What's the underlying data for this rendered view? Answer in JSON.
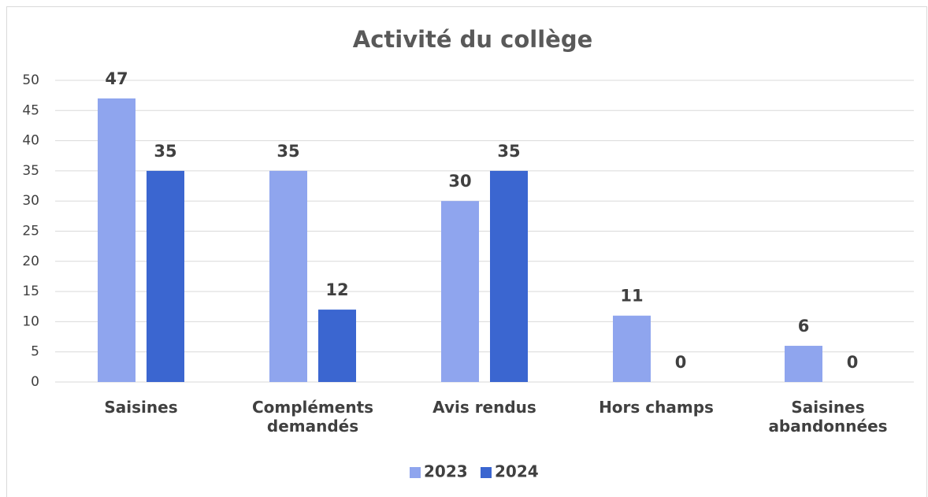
{
  "chart_data": {
    "type": "bar",
    "title": "Activité du collège",
    "categories": [
      "Saisines",
      "Compléments demandés",
      "Avis rendus",
      "Hors champs",
      "Saisines abandonnées"
    ],
    "series": [
      {
        "name": "2023",
        "color": "#8fa5ee",
        "values": [
          47,
          35,
          30,
          11,
          6
        ]
      },
      {
        "name": "2024",
        "color": "#3b66d0",
        "values": [
          35,
          12,
          35,
          0,
          0
        ]
      }
    ],
    "ylim": [
      0,
      50
    ],
    "yticks": [
      0,
      5,
      10,
      15,
      20,
      25,
      30,
      35,
      40,
      45,
      50
    ],
    "grid": true,
    "legend": "bottom"
  }
}
